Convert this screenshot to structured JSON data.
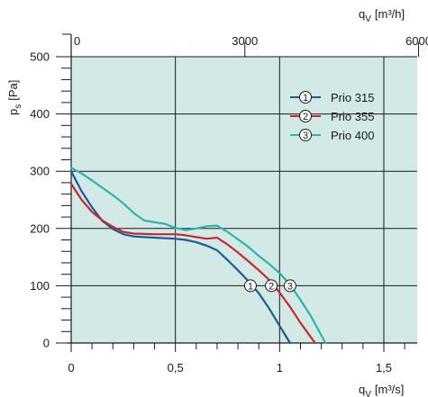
{
  "chart_data": {
    "type": "line",
    "xlabel_bottom": {
      "main": "q",
      "sub": "V",
      "unit": "[m³/s]"
    },
    "xlabel_top": {
      "main": "q",
      "sub": "V",
      "unit": "[m³/h]"
    },
    "ylabel": {
      "main": "p",
      "sub": "s",
      "unit": "[Pa]"
    },
    "xlim": [
      0,
      1.66
    ],
    "ylim": [
      0,
      500
    ],
    "x_ticks": [
      {
        "value": 0,
        "label": "0"
      },
      {
        "value": 0.5,
        "label": "0,5"
      },
      {
        "value": 1,
        "label": "1"
      },
      {
        "value": 1.5,
        "label": "1,5"
      }
    ],
    "x_top_ticks": [
      {
        "value": 0,
        "label": "0"
      },
      {
        "value": 3000,
        "label": "3000"
      },
      {
        "value": 6000,
        "label": "6000"
      }
    ],
    "y_ticks": [
      {
        "value": 0,
        "label": "0"
      },
      {
        "value": 100,
        "label": "100"
      },
      {
        "value": 200,
        "label": "200"
      },
      {
        "value": 300,
        "label": "300"
      },
      {
        "value": 400,
        "label": "400"
      },
      {
        "value": 500,
        "label": "500"
      }
    ],
    "y_minor_step": 20,
    "x_minor_step": 0.1,
    "grid": true,
    "legend_position": "top-right",
    "colors": {
      "background": "#d3e9e6",
      "grid": "#1a1a1a"
    },
    "series": [
      {
        "name": "Prio 315",
        "marker": "1",
        "color": "#1d5a96",
        "x": [
          0,
          0.05,
          0.1,
          0.15,
          0.2,
          0.25,
          0.3,
          0.4,
          0.5,
          0.55,
          0.6,
          0.65,
          0.7,
          0.75,
          0.8,
          0.85,
          0.9,
          0.95,
          1.0,
          1.05
        ],
        "y": [
          300,
          265,
          237,
          213,
          199,
          190,
          186,
          184,
          182,
          180,
          176,
          170,
          162,
          145,
          127,
          108,
          87,
          60,
          30,
          0
        ]
      },
      {
        "name": "Prio 355",
        "marker": "2",
        "color": "#c62a2a",
        "x": [
          0,
          0.05,
          0.1,
          0.15,
          0.2,
          0.25,
          0.3,
          0.4,
          0.5,
          0.55,
          0.6,
          0.65,
          0.7,
          0.75,
          0.8,
          0.85,
          0.9,
          0.95,
          1.0,
          1.05,
          1.1,
          1.17
        ],
        "y": [
          278,
          250,
          229,
          214,
          203,
          194,
          191,
          190,
          190,
          188,
          185,
          182,
          184,
          172,
          158,
          143,
          127,
          110,
          88,
          63,
          35,
          0
        ]
      },
      {
        "name": "Prio 400",
        "marker": "3",
        "color": "#2db3a8",
        "x": [
          0,
          0.05,
          0.1,
          0.15,
          0.2,
          0.25,
          0.3,
          0.35,
          0.4,
          0.45,
          0.5,
          0.55,
          0.6,
          0.65,
          0.7,
          0.75,
          0.8,
          0.85,
          0.9,
          0.95,
          1.0,
          1.05,
          1.1,
          1.15,
          1.22
        ],
        "y": [
          306,
          296,
          284,
          271,
          258,
          244,
          227,
          214,
          211,
          208,
          201,
          197,
          200,
          204,
          205,
          194,
          181,
          168,
          152,
          138,
          122,
          102,
          75,
          47,
          0
        ]
      }
    ],
    "markers": [
      {
        "label": "1",
        "x": 0.86,
        "y": 100
      },
      {
        "label": "2",
        "x": 0.96,
        "y": 100
      },
      {
        "label": "3",
        "x": 1.05,
        "y": 100
      }
    ]
  }
}
